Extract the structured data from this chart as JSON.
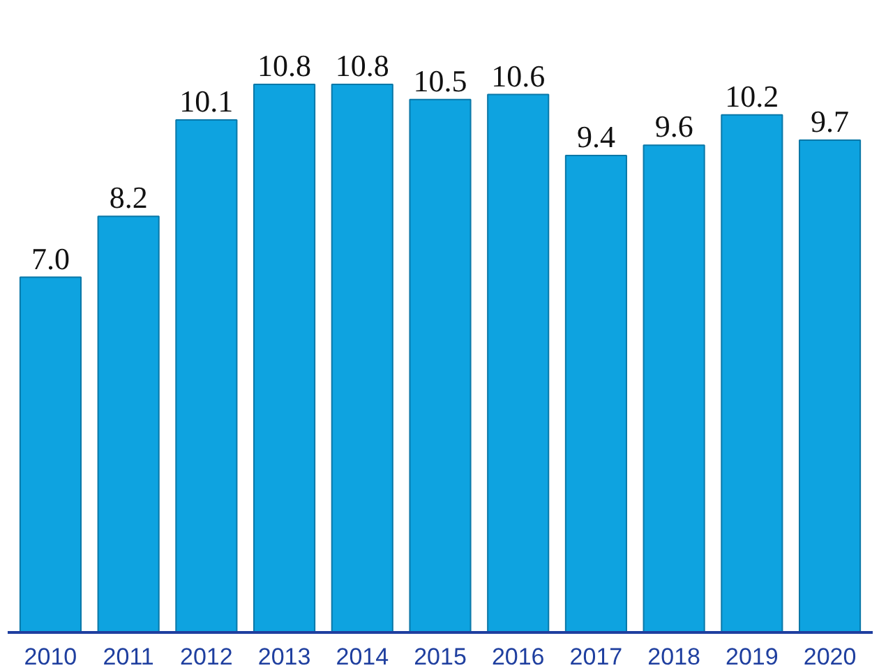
{
  "chart_data": {
    "type": "bar",
    "categories": [
      "2010",
      "2011",
      "2012",
      "2013",
      "2014",
      "2015",
      "2016",
      "2017",
      "2018",
      "2019",
      "2020"
    ],
    "values": [
      7.0,
      8.2,
      10.1,
      10.8,
      10.8,
      10.5,
      10.6,
      9.4,
      9.6,
      10.2,
      9.7
    ],
    "value_labels": [
      "7.0",
      "8.2",
      "10.1",
      "10.8",
      "10.8",
      "10.5",
      "10.6",
      "9.4",
      "9.6",
      "10.2",
      "9.7"
    ],
    "color": "#0ea3e0",
    "grid": false
  }
}
